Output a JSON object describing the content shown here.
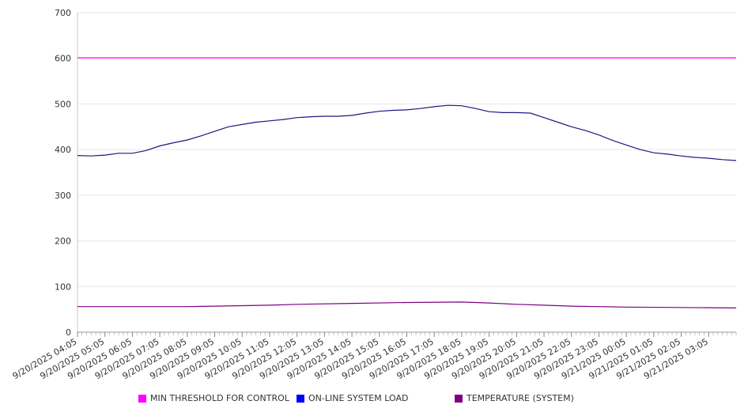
{
  "chart_data": {
    "type": "line",
    "y_ticks": [
      "0",
      "100",
      "200",
      "300",
      "400",
      "500",
      "600",
      "700"
    ],
    "ylim": [
      0,
      700
    ],
    "x_tick_labels": [
      "9/20/2025 04:05",
      "9/20/2025 05:05",
      "9/20/2025 06:05",
      "9/20/2025 07:05",
      "9/20/2025 08:05",
      "9/20/2025 09:05",
      "9/20/2025 10:05",
      "9/20/2025 11:05",
      "9/20/2025 12:05",
      "9/20/2025 13:05",
      "9/20/2025 14:05",
      "9/20/2025 15:05",
      "9/20/2025 16:05",
      "9/20/2025 17:05",
      "9/20/2025 18:05",
      "9/20/2025 19:05",
      "9/20/2025 20:05",
      "9/20/2025 21:05",
      "9/20/2025 22:05",
      "9/20/2025 23:05",
      "9/21/2025 00:05",
      "9/21/2025 01:05",
      "9/21/2025 02:05",
      "9/21/2025 03:05"
    ],
    "x_start": "9/20/2025 04:05",
    "x_end": "9/21/2025 04:05",
    "grid": true,
    "legend_position": "bottom",
    "series": [
      {
        "name": "MIN THRESHOLD FOR CONTROL",
        "color": "#ff00ff",
        "x": [
          "9/20/2025 04:05",
          "9/21/2025 04:05"
        ],
        "values": [
          601,
          601
        ]
      },
      {
        "name": "ON-LINE SYSTEM LOAD",
        "color": "#0000ff",
        "line_color": "#1a1a80",
        "x": [
          "9/20/2025 04:05",
          "9/20/2025 04:35",
          "9/20/2025 05:05",
          "9/20/2025 05:35",
          "9/20/2025 06:05",
          "9/20/2025 06:35",
          "9/20/2025 07:05",
          "9/20/2025 07:35",
          "9/20/2025 08:05",
          "9/20/2025 08:35",
          "9/20/2025 09:05",
          "9/20/2025 09:35",
          "9/20/2025 10:05",
          "9/20/2025 10:35",
          "9/20/2025 11:05",
          "9/20/2025 11:35",
          "9/20/2025 12:05",
          "9/20/2025 12:35",
          "9/20/2025 13:05",
          "9/20/2025 13:35",
          "9/20/2025 14:05",
          "9/20/2025 14:35",
          "9/20/2025 15:05",
          "9/20/2025 15:35",
          "9/20/2025 16:05",
          "9/20/2025 16:35",
          "9/20/2025 17:05",
          "9/20/2025 17:35",
          "9/20/2025 18:05",
          "9/20/2025 18:35",
          "9/20/2025 19:05",
          "9/20/2025 19:35",
          "9/20/2025 20:05",
          "9/20/2025 20:35",
          "9/20/2025 21:05",
          "9/20/2025 21:35",
          "9/20/2025 22:05",
          "9/20/2025 22:35",
          "9/20/2025 23:05",
          "9/20/2025 23:35",
          "9/21/2025 00:05",
          "9/21/2025 00:35",
          "9/21/2025 01:05",
          "9/21/2025 01:35",
          "9/21/2025 02:05",
          "9/21/2025 02:35",
          "9/21/2025 03:05",
          "9/21/2025 03:35",
          "9/21/2025 04:05"
        ],
        "values": [
          387,
          386,
          388,
          392,
          392,
          398,
          408,
          415,
          421,
          430,
          440,
          450,
          455,
          460,
          463,
          466,
          470,
          472,
          473,
          473,
          475,
          480,
          484,
          486,
          487,
          490,
          494,
          497,
          496,
          490,
          483,
          481,
          481,
          480,
          470,
          460,
          450,
          442,
          432,
          420,
          410,
          400,
          393,
          390,
          386,
          383,
          381,
          378,
          376
        ]
      },
      {
        "name": "TEMPERATURE (SYSTEM)",
        "color": "#800080",
        "x": [
          "9/20/2025 04:05",
          "9/20/2025 06:05",
          "9/20/2025 08:05",
          "9/20/2025 09:05",
          "9/20/2025 11:05",
          "9/20/2025 12:05",
          "9/20/2025 14:05",
          "9/20/2025 16:05",
          "9/20/2025 18:05",
          "9/20/2025 19:05",
          "9/20/2025 20:05",
          "9/20/2025 21:05",
          "9/20/2025 22:05",
          "9/20/2025 23:05",
          "9/21/2025 00:05",
          "9/21/2025 02:05",
          "9/21/2025 04:05"
        ],
        "values": [
          56,
          56,
          56,
          57,
          59,
          61,
          63,
          65,
          66,
          64,
          61,
          59,
          57,
          56,
          55,
          54,
          53
        ]
      }
    ]
  }
}
